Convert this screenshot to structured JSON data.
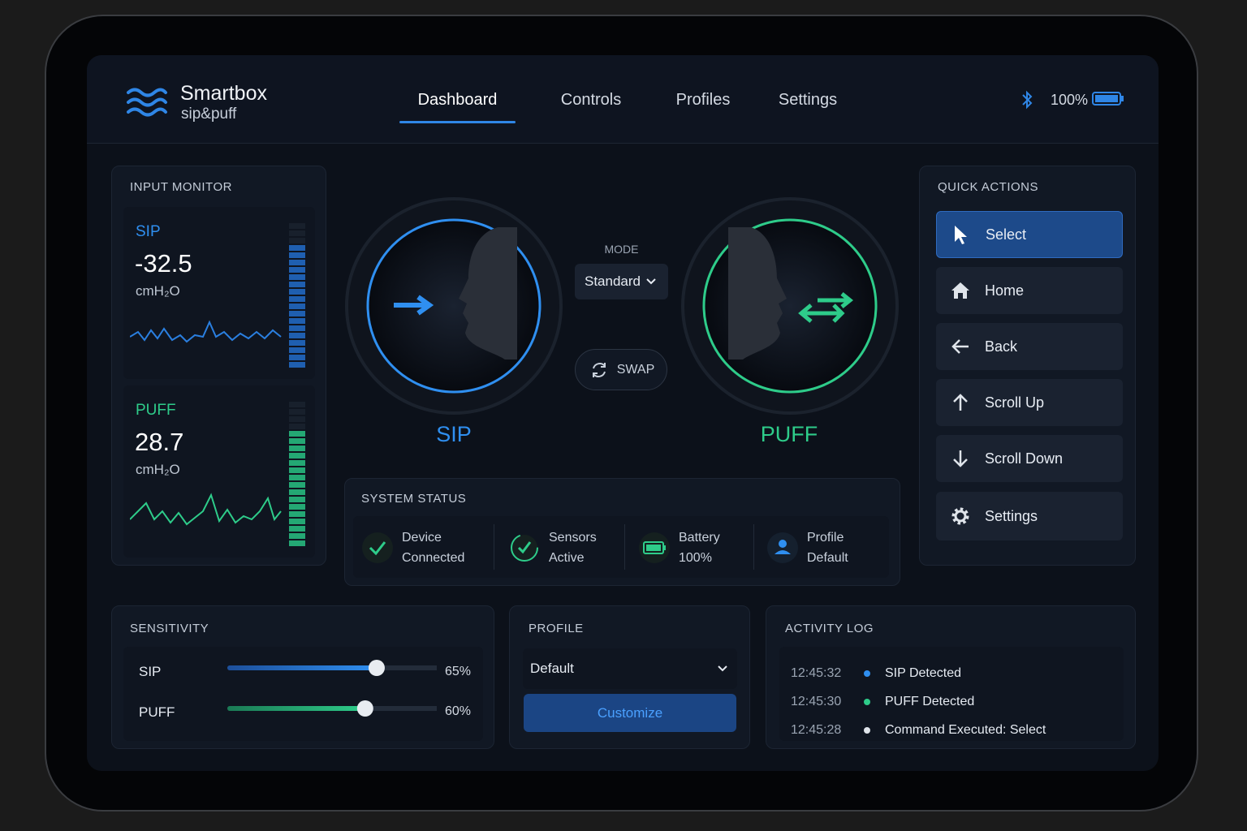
{
  "header": {
    "brand": "Smartbox",
    "subtitle": "sip&puff",
    "nav": [
      "Dashboard",
      "Controls",
      "Profiles",
      "Settings"
    ],
    "battery": "100%"
  },
  "input_monitor": {
    "title": "INPUT MONITOR",
    "sip": {
      "label": "SIP",
      "value": -32.5,
      "unit": "cmH₂O"
    },
    "puff": {
      "label": "PUFF",
      "value": 28.7,
      "unit": "cmH₂O"
    }
  },
  "mode": {
    "label": "MODE",
    "selected": "Standard",
    "swap": "SWAP"
  },
  "dials": [
    "SIP",
    "PUFF"
  ],
  "system_status": {
    "title": "SYSTEM STATUS",
    "items": [
      [
        "Device",
        "Connected"
      ],
      [
        "Sensors",
        "Active"
      ],
      [
        "Battery",
        "100%"
      ],
      [
        "Profile",
        "Default"
      ]
    ]
  },
  "quick_actions": {
    "title": "QUICK ACTIONS",
    "items": [
      "Select",
      "Home",
      "Back",
      "Scroll Up",
      "Scroll Down",
      "Settings"
    ]
  },
  "sensitivity": {
    "title": "SENSITIVITY",
    "rows": [
      {
        "name": "SIP",
        "value": 65,
        "label": "65%"
      },
      {
        "name": "PUFF",
        "value": 60,
        "label": "60%"
      }
    ]
  },
  "profile": {
    "title": "PROFILE",
    "selected": "Default",
    "button": "Customize"
  },
  "activity_log": {
    "title": "ACTIVITY LOG",
    "entries": [
      {
        "time": "12:45:32",
        "event": "SIP Detected"
      },
      {
        "time": "12:45:30",
        "event": "PUFF Detected"
      },
      {
        "time": "12:45:28",
        "event": "Command Executed: Select"
      }
    ]
  }
}
